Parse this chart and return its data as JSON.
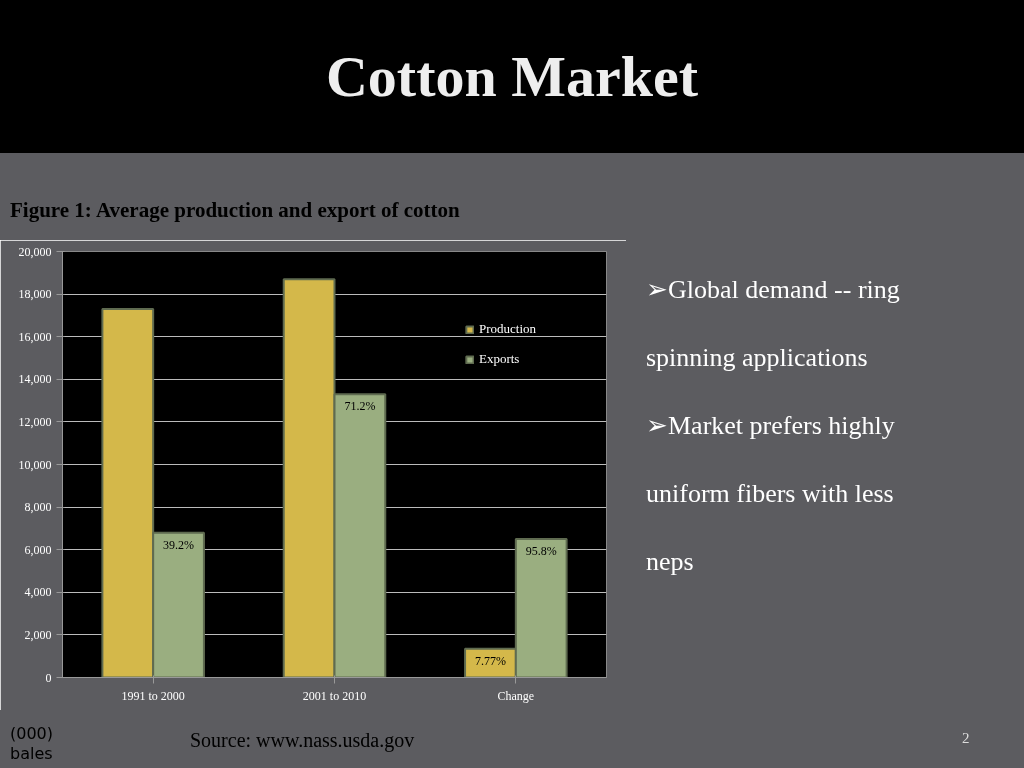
{
  "chart_data": {
    "type": "bar",
    "title": "Cotton Market",
    "subtitle": "Figure 1: Average production and export of cotton",
    "ylabel": "(000) bales",
    "categories": [
      "1991 to 2000",
      "2001 to 2010",
      "Change"
    ],
    "series": [
      {
        "name": "Production",
        "color": "#d4b84a",
        "values": [
          17300,
          18700,
          1350
        ]
      },
      {
        "name": "Exports",
        "color": "#9aae80",
        "values": [
          6800,
          13300,
          6500
        ]
      }
    ],
    "ylim": [
      0,
      20000
    ],
    "yticks": [
      {
        "value": 0,
        "label": "0"
      },
      {
        "value": 2000,
        "label": "2,000"
      },
      {
        "value": 4000,
        "label": "4,000"
      },
      {
        "value": 6000,
        "label": "6,000"
      },
      {
        "value": 8000,
        "label": "8,000"
      },
      {
        "value": 10000,
        "label": "10,000"
      },
      {
        "value": 12000,
        "label": "12,000"
      },
      {
        "value": 14000,
        "label": "14,000"
      },
      {
        "value": 16000,
        "label": "16,000"
      },
      {
        "value": 18000,
        "label": "18,000"
      },
      {
        "value": 20000,
        "label": "20,000"
      }
    ],
    "grid": "y",
    "legend": "top right",
    "annotations": [
      {
        "text": "39.2%",
        "x": "1991 to 2000",
        "y": 6800
      },
      {
        "text": "71.2%",
        "x": "2001 to 2010",
        "y": 13300
      },
      {
        "text": "7.77%",
        "x": "Change",
        "y": 1350
      },
      {
        "text": "95.8%",
        "x": "Change",
        "y": 6500
      },
      "➢Global demand -- ring spinning applications",
      "➢Market prefers highly uniform fibers with less neps",
      "Source: www.nass.usda.gov",
      "2"
    ]
  }
}
